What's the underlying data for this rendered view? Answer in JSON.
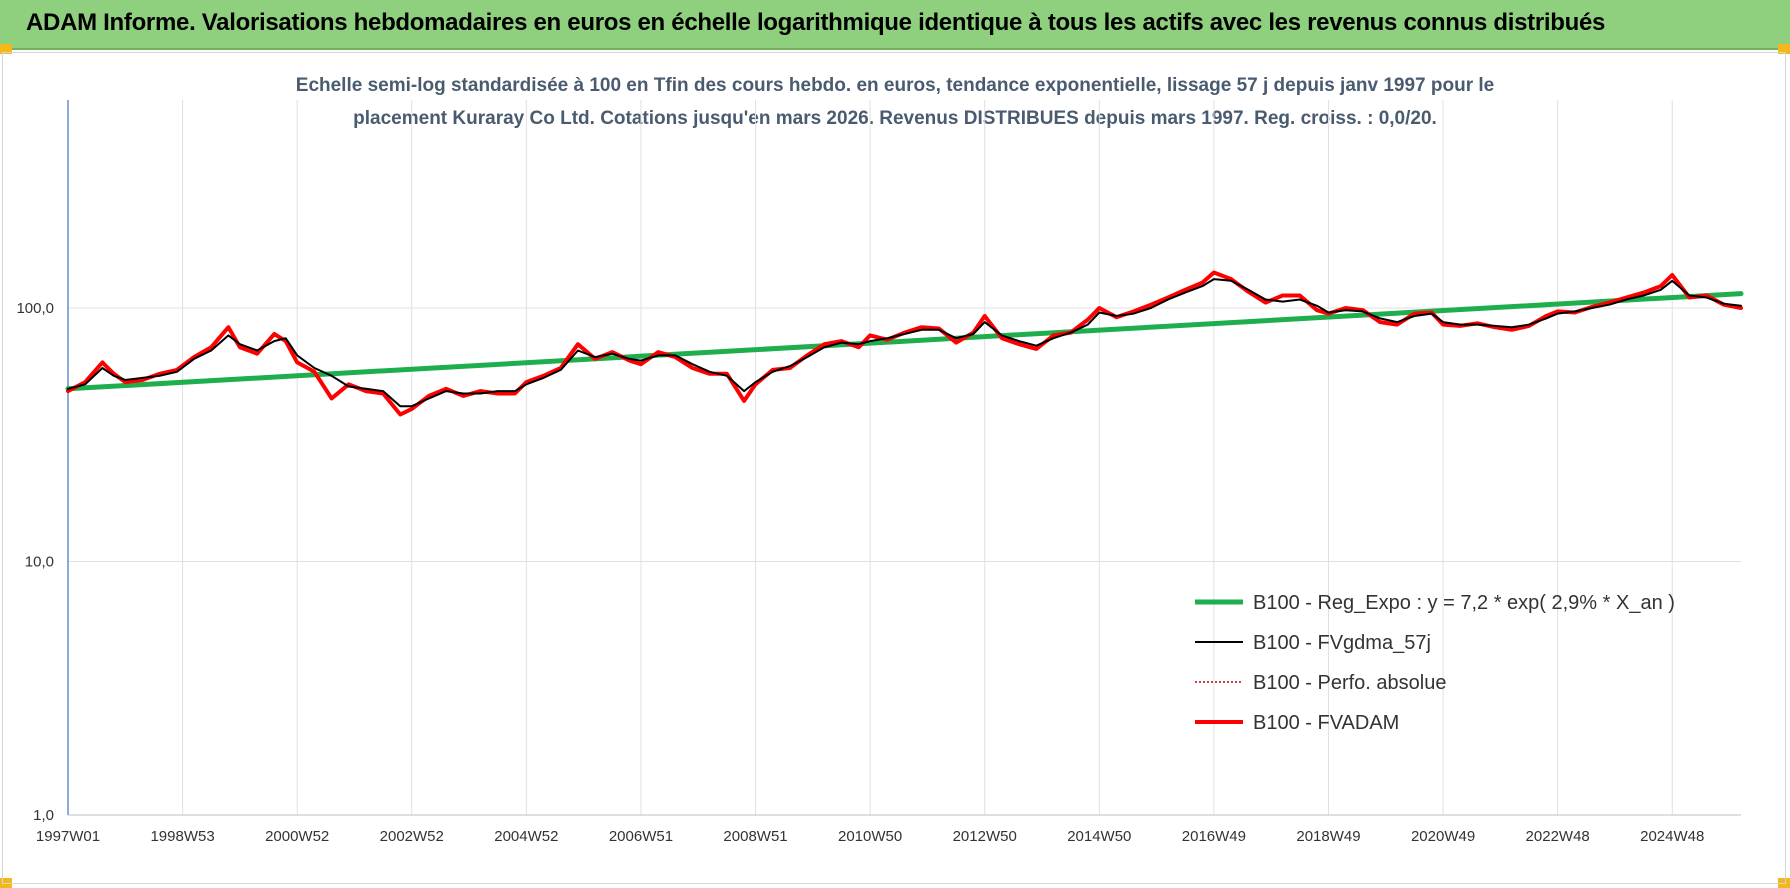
{
  "header": {
    "title": "ADAM Informe. Valorisations hebdomadaires en euros en échelle logarithmique identique à tous les actifs avec les revenus connus distribués"
  },
  "colors": {
    "header_bg": "#8fd07e",
    "reg_expo": "#1fae4d",
    "fvgdma": "#000000",
    "perfo": "#c00000",
    "fvadam": "#ff0000",
    "grid": "#e0e0e0",
    "axis": "#4472c4"
  },
  "chart_data": {
    "type": "line",
    "title_lines": [
      "Echelle semi-log standardisée à 100 en Tfin des cours hebdo. en euros, tendance exponentielle, lissage 57 j depuis janv 1997 pour le",
      "placement Kuraray Co Ltd. Cotations jusqu'en mars 2026. Revenus DISTRIBUES depuis mars 1997. Reg. croiss. : 0,0/20."
    ],
    "y_scale": "log",
    "ylim": [
      1,
      200
    ],
    "y_ticks": [
      {
        "value": 1,
        "label": "1,0"
      },
      {
        "value": 10,
        "label": "10,0"
      },
      {
        "value": 100,
        "label": "100,0"
      }
    ],
    "x_range": [
      1997.0,
      2026.2
    ],
    "x_ticks": [
      {
        "x": 1997.0,
        "label": "1997W01"
      },
      {
        "x": 1999.0,
        "label": "1998W53"
      },
      {
        "x": 2001.0,
        "label": "2000W52"
      },
      {
        "x": 2003.0,
        "label": "2002W52"
      },
      {
        "x": 2005.0,
        "label": "2004W52"
      },
      {
        "x": 2007.0,
        "label": "2006W51"
      },
      {
        "x": 2009.0,
        "label": "2008W51"
      },
      {
        "x": 2011.0,
        "label": "2010W50"
      },
      {
        "x": 2013.0,
        "label": "2012W50"
      },
      {
        "x": 2015.0,
        "label": "2014W50"
      },
      {
        "x": 2017.0,
        "label": "2016W49"
      },
      {
        "x": 2019.0,
        "label": "2018W49"
      },
      {
        "x": 2021.0,
        "label": "2020W49"
      },
      {
        "x": 2023.0,
        "label": "2022W48"
      },
      {
        "x": 2025.0,
        "label": "2024W48"
      }
    ],
    "grid": true,
    "legend_position": "bottom-right",
    "series": [
      {
        "name": "B100 - Reg_Expo : y = 7,2 * exp( 2,9% *  X_an )",
        "style": "thick-line",
        "x": [
          1997.0,
          2026.2
        ],
        "y": [
          48,
          114
        ]
      },
      {
        "name": "B100 - FVgdma_57j",
        "style": "thin-line",
        "x": [
          1997.0,
          1997.3,
          1997.6,
          1997.8,
          1998.0,
          1998.3,
          1998.6,
          1998.9,
          1999.2,
          1999.5,
          1999.8,
          2000.0,
          2000.3,
          2000.6,
          2000.8,
          2001.0,
          2001.3,
          2001.6,
          2001.9,
          2002.2,
          2002.5,
          2002.8,
          2003.0,
          2003.3,
          2003.6,
          2003.9,
          2004.2,
          2004.5,
          2004.8,
          2005.0,
          2005.3,
          2005.6,
          2005.9,
          2006.2,
          2006.5,
          2006.8,
          2007.0,
          2007.3,
          2007.6,
          2007.9,
          2008.2,
          2008.5,
          2008.8,
          2009.0,
          2009.3,
          2009.6,
          2009.9,
          2010.2,
          2010.5,
          2010.8,
          2011.0,
          2011.3,
          2011.6,
          2011.9,
          2012.2,
          2012.5,
          2012.8,
          2013.0,
          2013.3,
          2013.6,
          2013.9,
          2014.2,
          2014.5,
          2014.8,
          2015.0,
          2015.3,
          2015.6,
          2015.9,
          2016.2,
          2016.5,
          2016.8,
          2017.0,
          2017.3,
          2017.6,
          2017.9,
          2018.2,
          2018.5,
          2018.8,
          2019.0,
          2019.3,
          2019.6,
          2019.9,
          2020.2,
          2020.5,
          2020.8,
          2021.0,
          2021.3,
          2021.6,
          2021.9,
          2022.2,
          2022.5,
          2022.8,
          2023.0,
          2023.3,
          2023.6,
          2023.9,
          2024.2,
          2024.5,
          2024.8,
          2025.0,
          2025.3,
          2025.6,
          2025.9,
          2026.2
        ],
        "y": [
          48,
          50,
          58,
          54,
          52,
          53,
          54,
          56,
          63,
          68,
          78,
          72,
          68,
          74,
          76,
          65,
          58,
          54,
          49,
          48,
          47,
          41,
          41,
          44,
          47,
          46,
          46,
          47,
          47,
          50,
          53,
          57,
          68,
          64,
          66,
          63,
          62,
          65,
          65,
          60,
          56,
          54,
          47,
          51,
          56,
          59,
          64,
          70,
          73,
          72,
          74,
          76,
          79,
          82,
          82,
          76,
          79,
          88,
          78,
          74,
          71,
          76,
          80,
          86,
          96,
          93,
          95,
          100,
          108,
          115,
          122,
          130,
          128,
          118,
          108,
          106,
          108,
          102,
          96,
          98,
          97,
          91,
          88,
          93,
          95,
          88,
          86,
          86,
          85,
          84,
          86,
          91,
          95,
          97,
          100,
          103,
          108,
          112,
          118,
          128,
          112,
          110,
          104,
          102
        ]
      },
      {
        "name": "B100 - Perfo. absolue",
        "style": "dotted-line",
        "x": [],
        "y": []
      },
      {
        "name": "B100 - FVADAM",
        "style": "thick-line",
        "x": [
          1997.0,
          1997.3,
          1997.6,
          1997.8,
          1998.0,
          1998.3,
          1998.6,
          1998.9,
          1999.2,
          1999.5,
          1999.8,
          2000.0,
          2000.3,
          2000.6,
          2000.8,
          2001.0,
          2001.3,
          2001.6,
          2001.9,
          2002.2,
          2002.5,
          2002.8,
          2003.0,
          2003.3,
          2003.6,
          2003.9,
          2004.2,
          2004.5,
          2004.8,
          2005.0,
          2005.3,
          2005.6,
          2005.9,
          2006.2,
          2006.5,
          2006.8,
          2007.0,
          2007.3,
          2007.6,
          2007.9,
          2008.2,
          2008.5,
          2008.8,
          2009.0,
          2009.3,
          2009.6,
          2009.9,
          2010.2,
          2010.5,
          2010.8,
          2011.0,
          2011.3,
          2011.6,
          2011.9,
          2012.2,
          2012.5,
          2012.8,
          2013.0,
          2013.3,
          2013.6,
          2013.9,
          2014.2,
          2014.5,
          2014.8,
          2015.0,
          2015.3,
          2015.6,
          2015.9,
          2016.2,
          2016.5,
          2016.8,
          2017.0,
          2017.3,
          2017.6,
          2017.9,
          2018.2,
          2018.5,
          2018.8,
          2019.0,
          2019.3,
          2019.6,
          2019.9,
          2020.2,
          2020.5,
          2020.8,
          2021.0,
          2021.3,
          2021.6,
          2021.9,
          2022.2,
          2022.5,
          2022.8,
          2023.0,
          2023.3,
          2023.6,
          2023.9,
          2024.2,
          2024.5,
          2024.8,
          2025.0,
          2025.3,
          2025.6,
          2025.9,
          2026.2
        ],
        "y": [
          47,
          51,
          61,
          55,
          51,
          52,
          55,
          57,
          64,
          70,
          84,
          70,
          66,
          79,
          74,
          61,
          56,
          44,
          50,
          47,
          46,
          38,
          40,
          45,
          48,
          45,
          47,
          46,
          46,
          51,
          54,
          58,
          72,
          63,
          67,
          62,
          60,
          67,
          64,
          58,
          55,
          55,
          43,
          50,
          57,
          58,
          65,
          72,
          74,
          70,
          78,
          75,
          80,
          84,
          83,
          73,
          80,
          93,
          76,
          72,
          69,
          78,
          80,
          90,
          100,
          92,
          97,
          103,
          110,
          118,
          126,
          138,
          130,
          116,
          105,
          112,
          112,
          98,
          95,
          100,
          98,
          88,
          86,
          95,
          96,
          86,
          85,
          87,
          84,
          82,
          85,
          93,
          97,
          96,
          101,
          105,
          110,
          115,
          122,
          135,
          110,
          112,
          103,
          100
        ]
      }
    ]
  }
}
